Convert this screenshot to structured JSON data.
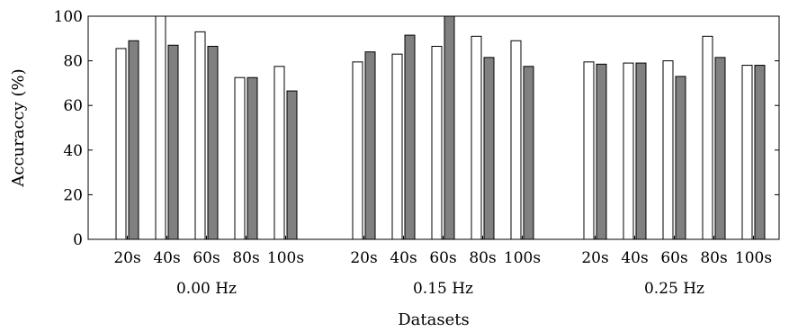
{
  "chart_data": {
    "type": "bar",
    "ylabel": "Accuraccy (%)",
    "xlabel": "Datasets",
    "ylim": [
      0,
      100
    ],
    "yticks": [
      0,
      20,
      40,
      60,
      80,
      100
    ],
    "grid": false,
    "legend": "none",
    "groups": [
      {
        "label": "0.00 Hz",
        "categories": [
          "20s",
          "40s",
          "60s",
          "80s",
          "100s"
        ],
        "series": [
          {
            "color": "#ffffff",
            "values": [
              85.5,
              100,
              93,
              72.5,
              77.5
            ]
          },
          {
            "color": "#808080",
            "values": [
              89,
              87,
              86.5,
              72.5,
              66.5
            ]
          }
        ]
      },
      {
        "label": "0.15 Hz",
        "categories": [
          "20s",
          "40s",
          "60s",
          "80s",
          "100s"
        ],
        "series": [
          {
            "color": "#ffffff",
            "values": [
              79.5,
              83,
              86.5,
              91,
              89
            ]
          },
          {
            "color": "#808080",
            "values": [
              84,
              91.5,
              100,
              81.5,
              77.5
            ]
          }
        ]
      },
      {
        "label": "0.25 Hz",
        "categories": [
          "20s",
          "40s",
          "60s",
          "80s",
          "100s"
        ],
        "series": [
          {
            "color": "#ffffff",
            "values": [
              79.5,
              79,
              80,
              91,
              78
            ]
          },
          {
            "color": "#808080",
            "values": [
              78.5,
              79,
              73,
              81.5,
              78
            ]
          }
        ]
      }
    ]
  }
}
